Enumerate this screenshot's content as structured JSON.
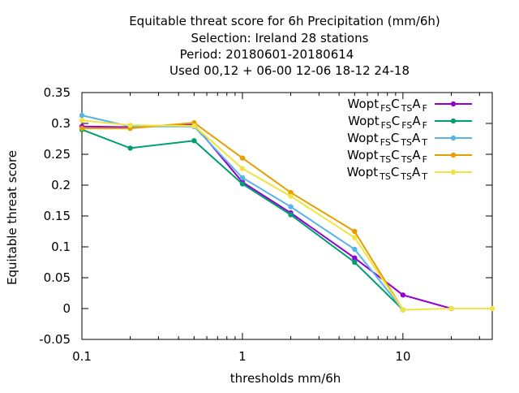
{
  "chart_data": {
    "type": "line",
    "title_lines": [
      "Equitable threat score  for 6h Precipitation (mm/6h)",
      "Selection: Ireland      28 stations",
      "Period: 20180601-20180614",
      "Used  00,12  + 06-00 12-06 18-12 24-18"
    ],
    "xlabel": "thresholds mm/6h",
    "ylabel": "Equitable threat score",
    "x_scale": "log",
    "xlim": [
      0.1,
      36
    ],
    "ylim": [
      -0.05,
      0.35
    ],
    "x_ticks": [
      {
        "value": 0.1,
        "label": "0.1"
      },
      {
        "value": 1,
        "label": "1"
      },
      {
        "value": 10,
        "label": "10"
      }
    ],
    "y_ticks": [
      {
        "value": -0.05,
        "label": "-0.05"
      },
      {
        "value": 0,
        "label": "0"
      },
      {
        "value": 0.05,
        "label": "0.05"
      },
      {
        "value": 0.1,
        "label": "0.1"
      },
      {
        "value": 0.15,
        "label": "0.15"
      },
      {
        "value": 0.2,
        "label": "0.2"
      },
      {
        "value": 0.25,
        "label": "0.25"
      },
      {
        "value": 0.3,
        "label": "0.3"
      },
      {
        "value": 0.35,
        "label": "0.35"
      }
    ],
    "grid": false,
    "legend_position": "top-right",
    "series": [
      {
        "name": "Wopt FS CTS AF",
        "parts": [
          [
            "Wopt",
            ""
          ],
          [
            "FS",
            "sub"
          ],
          [
            "C",
            ""
          ],
          [
            "TS",
            "sub"
          ],
          [
            "A",
            ""
          ],
          [
            "F",
            "sub"
          ]
        ],
        "color": "#9400d3",
        "x": [
          0.1,
          0.2,
          0.5,
          1,
          2,
          5,
          10,
          20
        ],
        "y": [
          0.295,
          0.294,
          0.298,
          0.205,
          0.155,
          0.082,
          0.022,
          0.0
        ]
      },
      {
        "name": "Wopt FS CFS AF",
        "parts": [
          [
            "Wopt",
            ""
          ],
          [
            "FS",
            "sub"
          ],
          [
            "C",
            ""
          ],
          [
            "FS",
            "sub"
          ],
          [
            "A",
            ""
          ],
          [
            "F",
            "sub"
          ]
        ],
        "color": "#009e73",
        "x": [
          0.1,
          0.2,
          0.5,
          1,
          2,
          5,
          10
        ],
        "y": [
          0.29,
          0.26,
          0.272,
          0.202,
          0.152,
          0.075,
          -0.002
        ]
      },
      {
        "name": "Wopt FS CTS AT",
        "parts": [
          [
            "Wopt",
            ""
          ],
          [
            "FS",
            "sub"
          ],
          [
            "C",
            ""
          ],
          [
            "TS",
            "sub"
          ],
          [
            "A",
            ""
          ],
          [
            "T",
            "sub"
          ]
        ],
        "color": "#56b4e9",
        "x": [
          0.1,
          0.2,
          0.5,
          1,
          2,
          5,
          10
        ],
        "y": [
          0.313,
          0.295,
          0.295,
          0.212,
          0.165,
          0.096,
          -0.002
        ]
      },
      {
        "name": "Wopt TS CTS AF",
        "parts": [
          [
            "Wopt",
            ""
          ],
          [
            "TS",
            "sub"
          ],
          [
            "C",
            ""
          ],
          [
            "TS",
            "sub"
          ],
          [
            "A",
            ""
          ],
          [
            "F",
            "sub"
          ]
        ],
        "color": "#e69f00",
        "x": [
          0.1,
          0.2,
          0.5,
          1,
          2,
          5,
          10
        ],
        "y": [
          0.292,
          0.292,
          0.301,
          0.244,
          0.188,
          0.125,
          -0.002
        ]
      },
      {
        "name": "Wopt TS CTS AT",
        "parts": [
          [
            "Wopt",
            ""
          ],
          [
            "TS",
            "sub"
          ],
          [
            "C",
            ""
          ],
          [
            "TS",
            "sub"
          ],
          [
            "A",
            ""
          ],
          [
            "T",
            "sub"
          ]
        ],
        "color": "#f0e442",
        "x": [
          0.1,
          0.2,
          0.5,
          1,
          2,
          5,
          10,
          20,
          36
        ],
        "y": [
          0.305,
          0.297,
          0.296,
          0.227,
          0.182,
          0.115,
          -0.002,
          0.0,
          0.0
        ]
      }
    ]
  }
}
